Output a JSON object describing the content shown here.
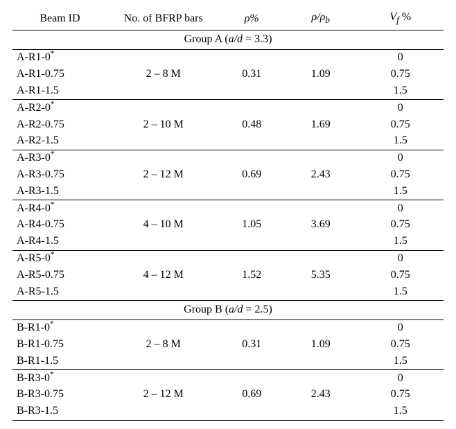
{
  "headers": {
    "beam_id": "Beam ID",
    "no_bars": "No. of BFRP bars",
    "rho": "ρ%",
    "rho_ratio_pre": "ρ/ρ",
    "rho_ratio_sub": "b",
    "vf_pre": "V",
    "vf_sub": "f",
    "vf_post": " %"
  },
  "groupA": {
    "label_pre": "Group A (",
    "label_var": "a/d",
    "label_post": " = 3.3)",
    "rows": [
      {
        "ids": [
          "A-R1-0",
          "A-R1-0.75",
          "A-R1-1.5"
        ],
        "star": true,
        "bars": "2 – 8 M",
        "rho": "0.31",
        "ratio": "1.09",
        "vf": [
          "0",
          "0.75",
          "1.5"
        ]
      },
      {
        "ids": [
          "A-R2-0",
          "A-R2-0.75",
          "A-R2-1.5"
        ],
        "star": true,
        "bars": "2 – 10 M",
        "rho": "0.48",
        "ratio": "1.69",
        "vf": [
          "0",
          "0.75",
          "1.5"
        ]
      },
      {
        "ids": [
          "A-R3-0",
          "A-R3-0.75",
          "A-R3-1.5"
        ],
        "star": true,
        "bars": "2 – 12 M",
        "rho": "0.69",
        "ratio": "2.43",
        "vf": [
          "0",
          "0.75",
          "1.5"
        ]
      },
      {
        "ids": [
          "A-R4-0",
          "A-R4-0.75",
          "A-R4-1.5"
        ],
        "star": true,
        "bars": "4 – 10 M",
        "rho": "1.05",
        "ratio": "3.69",
        "vf": [
          "0",
          "0.75",
          "1.5"
        ]
      },
      {
        "ids": [
          "A-R5-0",
          "A-R5-0.75",
          "A-R5-1.5"
        ],
        "star": true,
        "bars": "4 – 12 M",
        "rho": "1.52",
        "ratio": "5.35",
        "vf": [
          "0",
          "0.75",
          "1.5"
        ]
      }
    ]
  },
  "groupB": {
    "label_pre": "Group B (",
    "label_var": "a/d",
    "label_post": " = 2.5)",
    "rows": [
      {
        "ids": [
          "B-R1-0",
          "B-R1-0.75",
          "B-R1-1.5"
        ],
        "star": true,
        "bars": "2 – 8 M",
        "rho": "0.31",
        "ratio": "1.09",
        "vf": [
          "0",
          "0.75",
          "1.5"
        ]
      },
      {
        "ids": [
          "B-R3-0",
          "B-R3-0.75",
          "B-R3-1.5"
        ],
        "star": true,
        "bars": "2 – 12 M",
        "rho": "0.69",
        "ratio": "2.43",
        "vf": [
          "0",
          "0.75",
          "1.5"
        ]
      }
    ]
  }
}
